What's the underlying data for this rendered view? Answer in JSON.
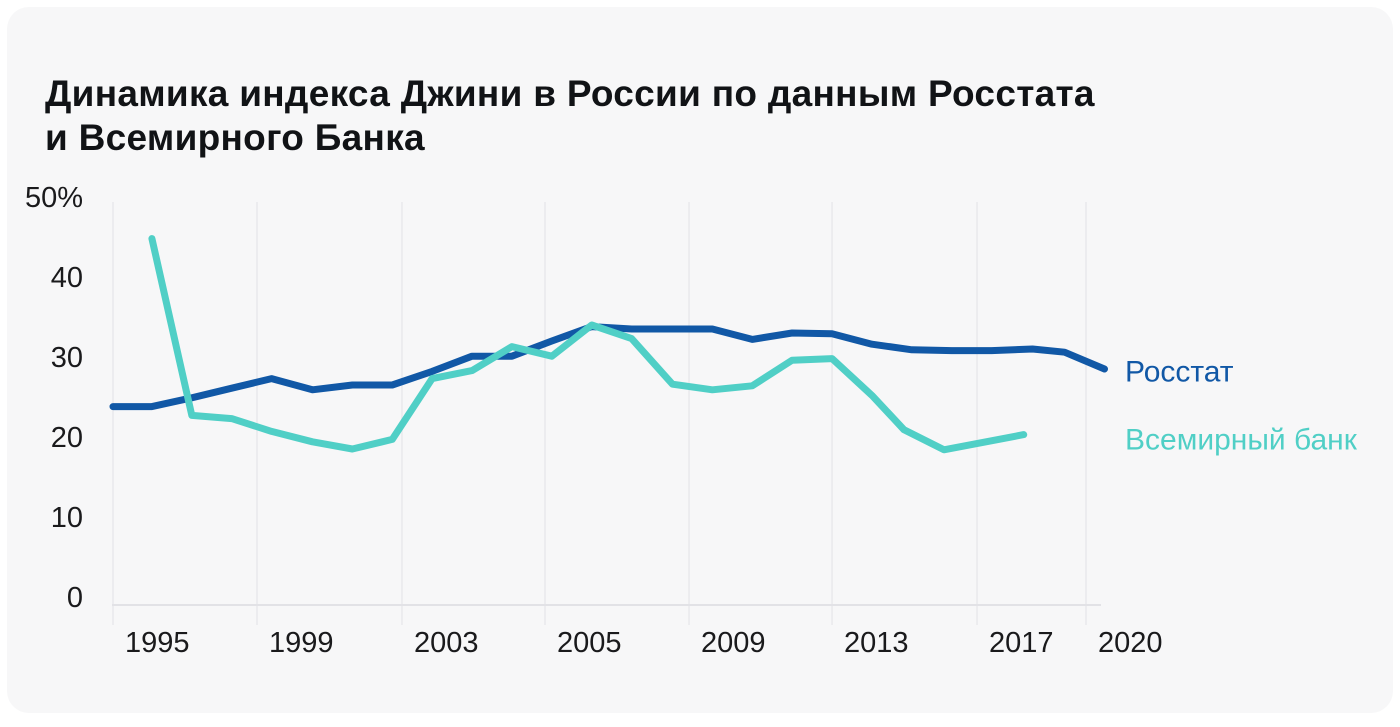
{
  "card": {
    "background": "#f7f7f8",
    "page_background": "#ffffff"
  },
  "title": {
    "line1": "Динамика индекса Джини в России по данным Росстата",
    "line2": "и Всемирного Банка"
  },
  "chart_data": {
    "type": "line",
    "title": "Динамика индекса Джини в России по данным Росстата и Всемирного Банка",
    "unit": "%",
    "grid": "vertical-only",
    "legend_position": "right-of-lines",
    "colors": {
      "gridline": "#e9e9ec",
      "axis_line": "#e2e2e6",
      "tick_text": "#1a1a1c"
    },
    "y_axis": {
      "range": [
        0,
        50
      ],
      "ticks": [
        {
          "label": "0",
          "value": 0
        },
        {
          "label": "10",
          "value": 10
        },
        {
          "label": "20",
          "value": 20
        },
        {
          "label": "30",
          "value": 30
        },
        {
          "label": "40",
          "value": 40
        },
        {
          "label": "50%",
          "value": 50
        }
      ]
    },
    "x_axis": {
      "note": "pos is fraction of plot width between the 1995 and 2020 gridlines",
      "ticks": [
        {
          "label": "1995",
          "pos": 0.0
        },
        {
          "label": "1999",
          "pos": 0.148
        },
        {
          "label": "2003",
          "pos": 0.297
        },
        {
          "label": "2005",
          "pos": 0.444
        },
        {
          "label": "2009",
          "pos": 0.592
        },
        {
          "label": "2013",
          "pos": 0.739
        },
        {
          "label": "2017",
          "pos": 0.888
        },
        {
          "label": "2020",
          "pos": 1.0
        }
      ]
    },
    "series": [
      {
        "name": "Росстат",
        "color": "#1158a6",
        "points": [
          [
            0.0,
            23.8
          ],
          [
            0.04,
            23.8
          ],
          [
            0.081,
            24.9
          ],
          [
            0.122,
            26.1
          ],
          [
            0.163,
            27.3
          ],
          [
            0.205,
            25.9
          ],
          [
            0.246,
            26.5
          ],
          [
            0.287,
            26.5
          ],
          [
            0.328,
            28.2
          ],
          [
            0.369,
            30.1
          ],
          [
            0.41,
            30.1
          ],
          [
            0.451,
            32.0
          ],
          [
            0.492,
            33.8
          ],
          [
            0.533,
            33.5
          ],
          [
            0.575,
            33.5
          ],
          [
            0.616,
            33.5
          ],
          [
            0.657,
            32.2
          ],
          [
            0.698,
            33.0
          ],
          [
            0.739,
            32.9
          ],
          [
            0.78,
            31.6
          ],
          [
            0.821,
            30.9
          ],
          [
            0.862,
            30.8
          ],
          [
            0.903,
            30.8
          ],
          [
            0.945,
            31.0
          ],
          [
            0.978,
            30.6
          ],
          [
            1.019,
            28.5
          ]
        ],
        "values_at_ticks": {
          "1995": 23.8,
          "1999": 27.0,
          "2003": 26.9,
          "2005": 31.8,
          "2009": 33.5,
          "2013": 32.9,
          "2017": 30.8,
          "2020": 29.5
        }
      },
      {
        "name": "Всемирный банк",
        "color": "#50cfc6",
        "points": [
          [
            0.04,
            44.8
          ],
          [
            0.081,
            22.7
          ],
          [
            0.122,
            22.3
          ],
          [
            0.163,
            20.7
          ],
          [
            0.205,
            19.4
          ],
          [
            0.246,
            18.5
          ],
          [
            0.287,
            19.7
          ],
          [
            0.328,
            27.3
          ],
          [
            0.369,
            28.3
          ],
          [
            0.41,
            31.3
          ],
          [
            0.451,
            30.1
          ],
          [
            0.492,
            34.0
          ],
          [
            0.533,
            32.3
          ],
          [
            0.575,
            26.6
          ],
          [
            0.616,
            25.9
          ],
          [
            0.657,
            26.4
          ],
          [
            0.698,
            29.6
          ],
          [
            0.739,
            29.8
          ],
          [
            0.78,
            25.2
          ],
          [
            0.813,
            20.9
          ],
          [
            0.854,
            18.4
          ],
          [
            0.936,
            20.3
          ]
        ],
        "values_at_ticks": {
          "1999": 21.2,
          "2003": 21.6,
          "2005": 30.2,
          "2009": 26.3,
          "2013": 29.8,
          "2017": 18.5
        }
      }
    ]
  }
}
